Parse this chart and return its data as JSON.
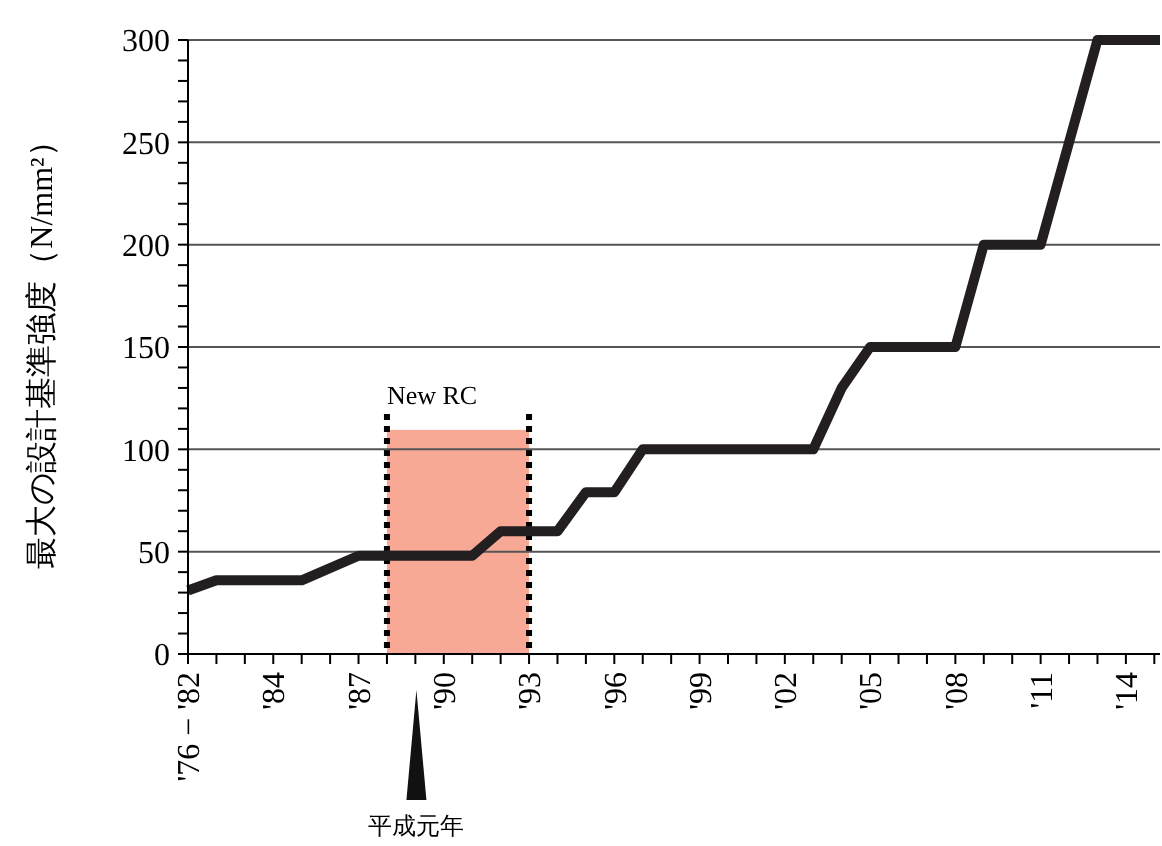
{
  "chart_data": {
    "type": "step",
    "ylabel": "最大の設計基準強度（N/mm²）",
    "x": [
      1981,
      1982,
      1985,
      1987,
      1991,
      1992,
      1994,
      1995,
      1996,
      1997,
      2003,
      2004,
      2005,
      2008,
      2009,
      2011,
      2013,
      2015.2
    ],
    "series": [
      {
        "color": "#231f20",
        "values": [
          31,
          36,
          36,
          48,
          48,
          60,
          60,
          79,
          79,
          100,
          100,
          130,
          150,
          150,
          200,
          200,
          300,
          300
        ]
      }
    ],
    "xlim": [
      1981,
      2015.2
    ],
    "xticks": [
      {
        "value": 1981,
        "label": "'76 − '82"
      },
      {
        "value": 1982,
        "label": null
      },
      {
        "value": 1983,
        "label": null
      },
      {
        "value": 1984,
        "label": "'84"
      },
      {
        "value": 1985,
        "label": null
      },
      {
        "value": 1986,
        "label": null
      },
      {
        "value": 1987,
        "label": "'87"
      },
      {
        "value": 1988,
        "label": null
      },
      {
        "value": 1989,
        "label": null
      },
      {
        "value": 1990,
        "label": "'90"
      },
      {
        "value": 1991,
        "label": null
      },
      {
        "value": 1992,
        "label": null
      },
      {
        "value": 1993,
        "label": "'93"
      },
      {
        "value": 1994,
        "label": null
      },
      {
        "value": 1995,
        "label": null
      },
      {
        "value": 1996,
        "label": "'96"
      },
      {
        "value": 1997,
        "label": null
      },
      {
        "value": 1998,
        "label": null
      },
      {
        "value": 1999,
        "label": "'99"
      },
      {
        "value": 2000,
        "label": null
      },
      {
        "value": 2001,
        "label": null
      },
      {
        "value": 2002,
        "label": "'02"
      },
      {
        "value": 2003,
        "label": null
      },
      {
        "value": 2004,
        "label": null
      },
      {
        "value": 2005,
        "label": "'05"
      },
      {
        "value": 2006,
        "label": null
      },
      {
        "value": 2007,
        "label": null
      },
      {
        "value": 2008,
        "label": "'08"
      },
      {
        "value": 2009,
        "label": null
      },
      {
        "value": 2010,
        "label": null
      },
      {
        "value": 2011,
        "label": "'11"
      },
      {
        "value": 2012,
        "label": null
      },
      {
        "value": 2013,
        "label": null
      },
      {
        "value": 2014,
        "label": "'14"
      },
      {
        "value": 2015,
        "label": null
      }
    ],
    "ylim": [
      0,
      300
    ],
    "yticks": [
      0,
      {
        "value": 10,
        "label": null
      },
      {
        "value": 20,
        "label": null
      },
      {
        "value": 30,
        "label": null
      },
      {
        "value": 40,
        "label": null
      },
      50,
      {
        "value": 60,
        "label": null
      },
      {
        "value": 70,
        "label": null
      },
      {
        "value": 80,
        "label": null
      },
      {
        "value": 90,
        "label": null
      },
      100,
      {
        "value": 110,
        "label": null
      },
      {
        "value": 120,
        "label": null
      },
      {
        "value": 130,
        "label": null
      },
      {
        "value": 140,
        "label": null
      },
      150,
      {
        "value": 160,
        "label": null
      },
      {
        "value": 170,
        "label": null
      },
      {
        "value": 180,
        "label": null
      },
      {
        "value": 190,
        "label": null
      },
      200,
      {
        "value": 210,
        "label": null
      },
      {
        "value": 220,
        "label": null
      },
      {
        "value": 230,
        "label": null
      },
      {
        "value": 240,
        "label": null
      },
      250,
      {
        "value": 260,
        "label": null
      },
      {
        "value": 270,
        "label": null
      },
      {
        "value": 280,
        "label": null
      },
      {
        "value": 290,
        "label": null
      },
      300
    ],
    "grid": "y",
    "bands": [
      {
        "axis": "x",
        "from": 1988,
        "to": 1993,
        "label": "New RC",
        "color": "#f7a996"
      }
    ],
    "ref_lines": [
      {
        "axis": "x",
        "value": 1988,
        "line_style": "dotted",
        "color": "#000000"
      },
      {
        "axis": "x",
        "value": 1993,
        "line_style": "dotted",
        "color": "#000000"
      }
    ],
    "annotations": [
      "平成元年"
    ]
  }
}
